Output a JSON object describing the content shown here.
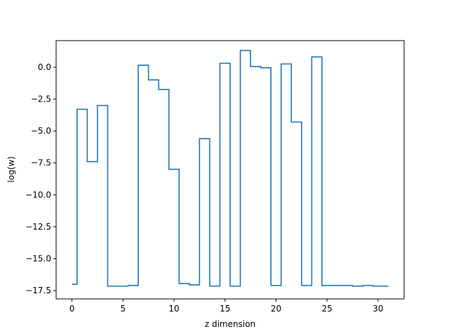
{
  "chart_data": {
    "type": "line",
    "drawstyle": "steps-mid",
    "title": "",
    "xlabel": "z dimension",
    "ylabel": "log(w)",
    "xlim": [
      -1.55,
      32.55
    ],
    "ylim": [
      -18.15,
      2.08
    ],
    "xticks": [
      0,
      5,
      10,
      15,
      20,
      25,
      30
    ],
    "xtick_labels": [
      "0",
      "5",
      "10",
      "15",
      "20",
      "25",
      "30"
    ],
    "yticks": [
      0.0,
      -2.5,
      -5.0,
      -7.5,
      -10.0,
      -12.5,
      -15.0,
      -17.5
    ],
    "ytick_labels": [
      "0.0",
      "−2.5",
      "−5.0",
      "−7.5",
      "−10.0",
      "−12.5",
      "−15.0",
      "−17.5"
    ],
    "grid": false,
    "line_color": "#1f77b4",
    "series": [
      {
        "x": [
          0,
          1,
          2,
          3,
          4,
          5,
          6,
          7,
          8,
          9,
          10,
          11,
          12,
          13,
          14,
          15,
          16,
          17,
          18,
          19,
          20,
          21,
          22,
          23,
          24,
          25,
          26,
          27,
          28,
          29,
          30,
          31
        ],
        "y": [
          -17.0,
          -3.3,
          -7.4,
          -3.0,
          -17.15,
          -17.15,
          -17.1,
          0.15,
          -1.0,
          -1.75,
          -8.0,
          -16.95,
          -17.05,
          -5.6,
          -17.15,
          0.3,
          -17.15,
          1.3,
          0.05,
          -0.05,
          -17.1,
          0.25,
          -4.3,
          -17.1,
          0.8,
          -17.1,
          -17.1,
          -17.1,
          -17.15,
          -17.1,
          -17.15,
          -17.15
        ]
      }
    ]
  }
}
